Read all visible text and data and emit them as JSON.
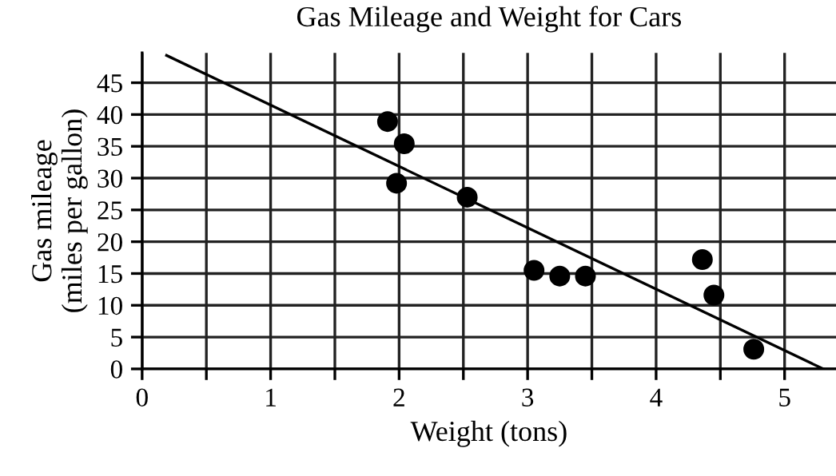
{
  "chart_data": {
    "type": "scatter",
    "title": "Gas Mileage and Weight for Cars",
    "xlabel": "Weight (tons)",
    "ylabel": "Gas mileage\n(miles per gallon)",
    "series": [
      {
        "marker": "circle",
        "color": "#000000",
        "x": [
          1.91,
          2.04,
          1.98,
          2.53,
          3.05,
          3.25,
          3.45,
          4.36,
          4.45,
          4.76
        ],
        "values": [
          38.9,
          35.4,
          29.2,
          27,
          15.5,
          14.6,
          14.6,
          17.2,
          11.6,
          3.1
        ]
      },
      {
        "type": "line",
        "color": "#000000",
        "x": [
          0.19,
          5.3
        ],
        "values": [
          49.3,
          0
        ]
      }
    ],
    "xlim": [
      0,
      5.4
    ],
    "ylim": [
      0,
      49.7
    ],
    "xticks": [
      0,
      {
        "value": 0.5,
        "label": null
      },
      1,
      {
        "value": 1.5,
        "label": null
      },
      2,
      {
        "value": 2.5,
        "label": null
      },
      3,
      {
        "value": 3.5,
        "label": null
      },
      4,
      {
        "value": 4.5,
        "label": null
      },
      5
    ],
    "yticks": [
      0,
      5,
      10,
      15,
      20,
      25,
      30,
      35,
      40,
      45
    ],
    "grid": true
  }
}
